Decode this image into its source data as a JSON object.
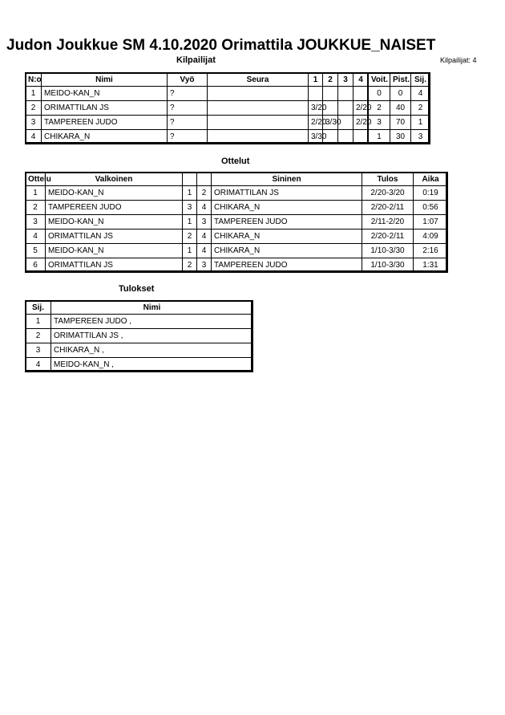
{
  "header": {
    "title": "Judon Joukkue SM  4.10.2020  Orimattila   JOUKKUE_NAISET",
    "subtitle": "Kilpailijat",
    "count": "Kilpailijat: 4"
  },
  "competitors": {
    "columns": [
      "N:o",
      "Nimi",
      "Vyö",
      "Seura",
      "1",
      "2",
      "3",
      "4",
      "Voit.",
      "Pist.",
      "Sij."
    ],
    "rows": [
      [
        "1",
        "MEIDO-KAN_N",
        "?",
        null,
        null,
        null,
        null,
        null,
        "0",
        "0",
        "4"
      ],
      [
        "2",
        "ORIMATTILAN JS",
        "?",
        null,
        "3/20",
        null,
        null,
        "2/20",
        "2",
        "40",
        "2"
      ],
      [
        "3",
        "TAMPEREEN JUDO",
        "?",
        null,
        "2/20",
        "3/30",
        null,
        "2/20",
        "3",
        "70",
        "1"
      ],
      [
        "4",
        "CHIKARA_N",
        "?",
        null,
        "3/30",
        null,
        null,
        null,
        "1",
        "30",
        "3"
      ]
    ]
  },
  "matches": {
    "title": "Ottelut",
    "columns": [
      "Ottelu",
      "Valkoinen",
      null,
      null,
      "Sininen",
      "Tulos",
      "Aika"
    ],
    "rows": [
      [
        "1",
        "MEIDO-KAN_N",
        "1",
        "2",
        "ORIMATTILAN JS",
        "2/20-3/20",
        "0:19"
      ],
      [
        "2",
        "TAMPEREEN JUDO",
        "3",
        "4",
        "CHIKARA_N",
        "2/20-2/11",
        "0:56"
      ],
      [
        "3",
        "MEIDO-KAN_N",
        "1",
        "3",
        "TAMPEREEN JUDO",
        "2/11-2/20",
        "1:07"
      ],
      [
        "4",
        "ORIMATTILAN JS",
        "2",
        "4",
        "CHIKARA_N",
        "2/20-2/11",
        "4:09"
      ],
      [
        "5",
        "MEIDO-KAN_N",
        "1",
        "4",
        "CHIKARA_N",
        "1/10-3/30",
        "2:16"
      ],
      [
        "6",
        "ORIMATTILAN JS",
        "2",
        "3",
        "TAMPEREEN JUDO",
        "1/10-3/30",
        "1:31"
      ]
    ]
  },
  "results": {
    "title": "Tulokset",
    "columns": [
      "Sij.",
      "Nimi"
    ],
    "rows": [
      [
        "1",
        "TAMPEREEN JUDO ,"
      ],
      [
        "2",
        "ORIMATTILAN JS ,"
      ],
      [
        "3",
        "CHIKARA_N ,"
      ],
      [
        "4",
        "MEIDO-KAN_N ,"
      ]
    ]
  }
}
